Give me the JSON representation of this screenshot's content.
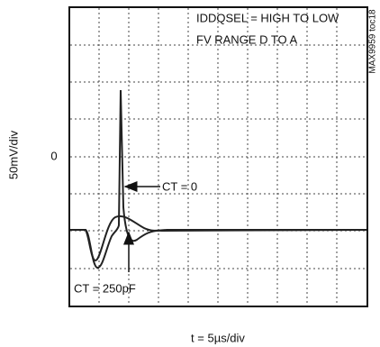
{
  "plot": {
    "y_label": "50mV/div",
    "x_label": "t = 5µs/div",
    "zero_label": "0",
    "figure_id": "MAX9959 toc18",
    "annotations": [
      "IDDQSEL = HIGH TO LOW",
      "FV RANGE D TO A"
    ],
    "callouts": [
      "CT = 0",
      "CT = 250pF"
    ]
  }
}
